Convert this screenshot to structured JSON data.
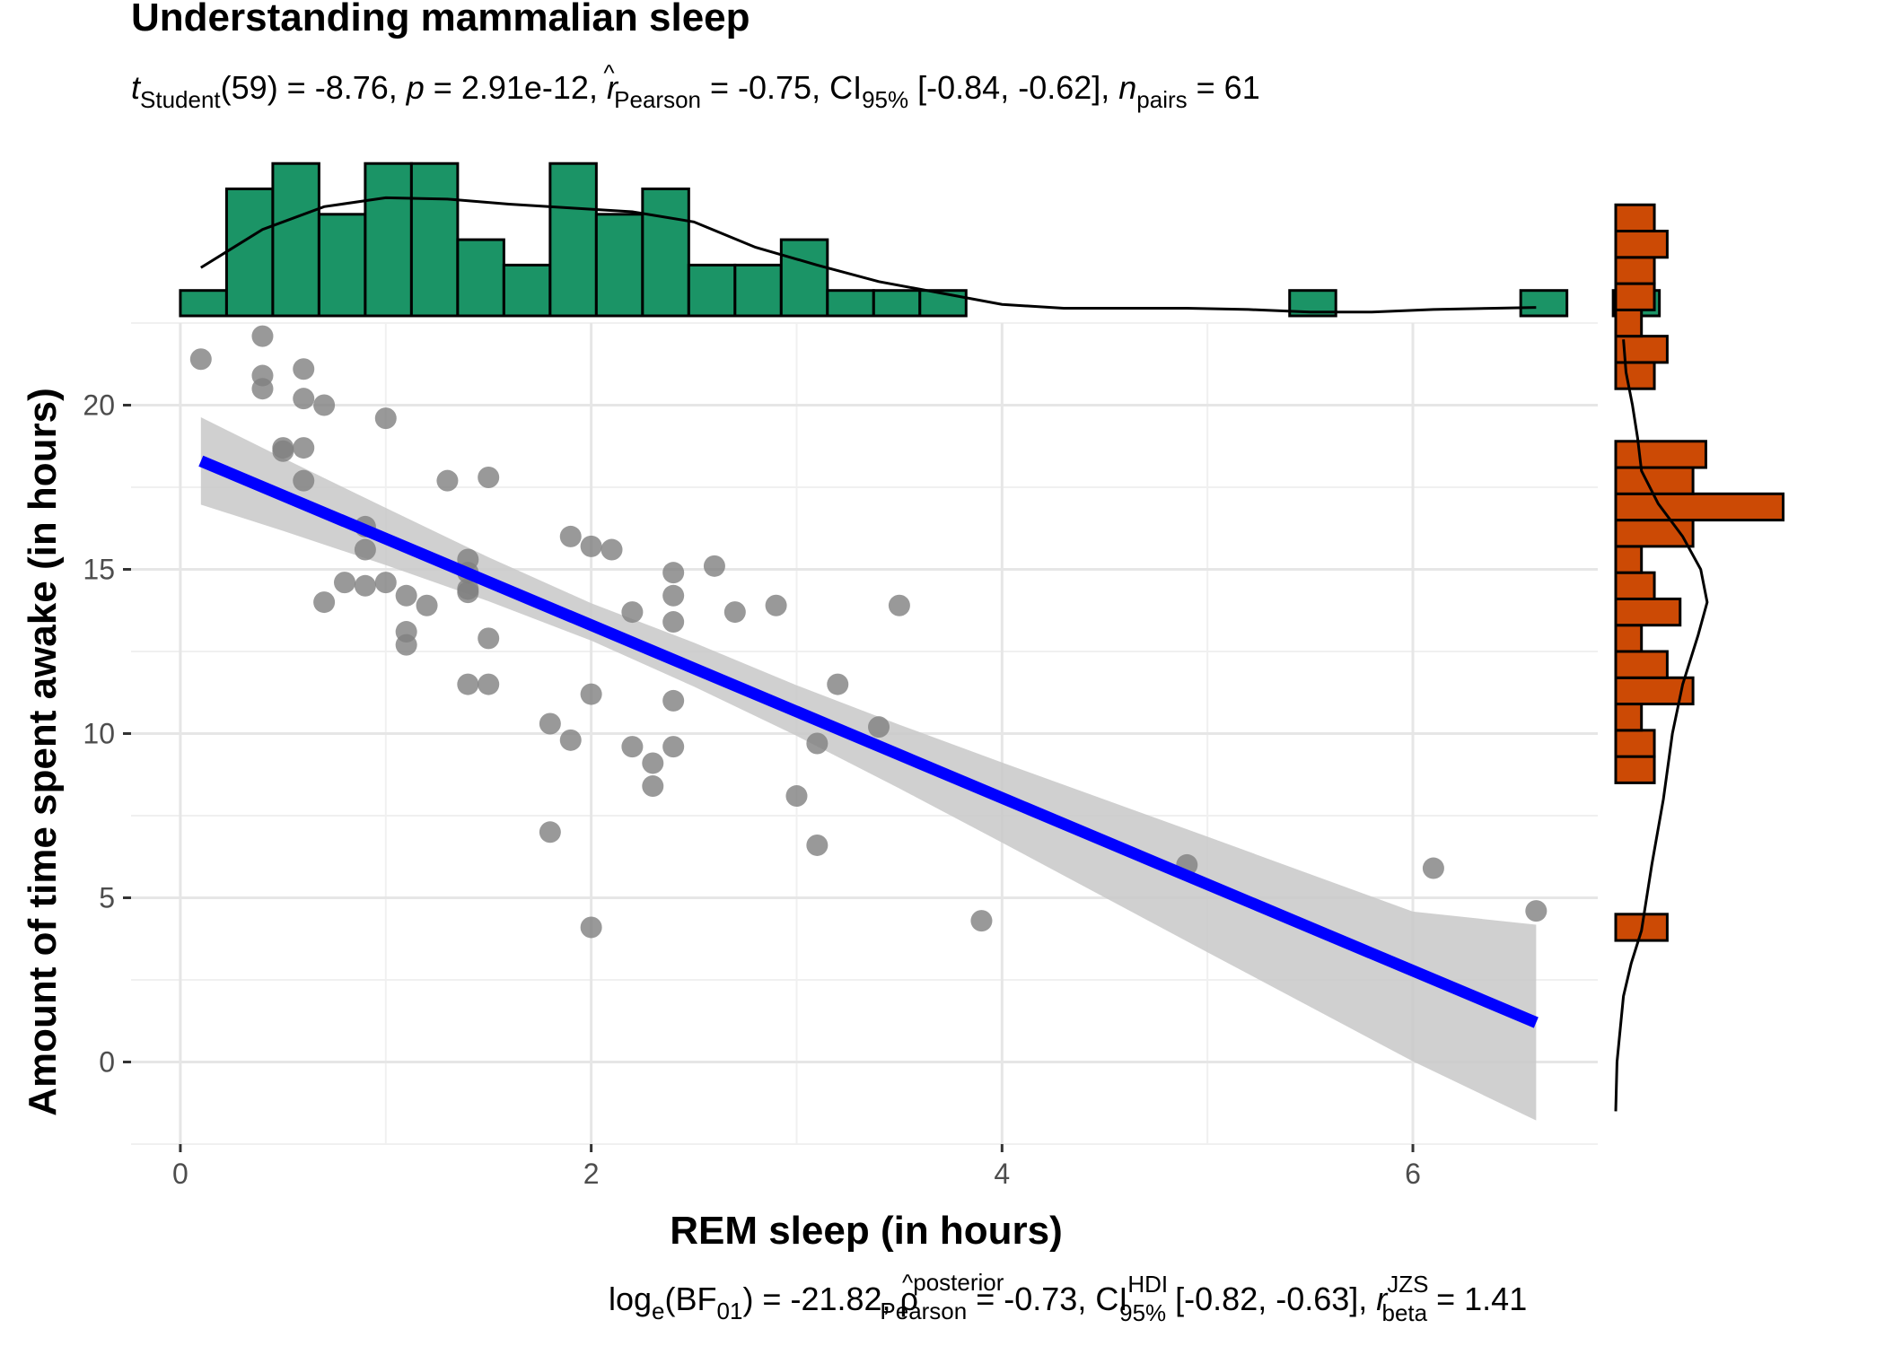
{
  "chart_data": {
    "type": "scatter",
    "title": "Understanding mammalian sleep",
    "subtitle": {
      "t_label": "t",
      "t_sub": "Student",
      "t_val": "(59) = -8.76, ",
      "p_label": "p",
      "p_val": " = 2.91e-12, ",
      "r_label": "r",
      "r_hat": "^",
      "r_sub": "Pearson",
      "r_val": " = -0.75, CI",
      "ci_sub": "95%",
      "ci_val": " [-0.84, -0.62], ",
      "n_label": "n",
      "n_sub": "pairs",
      "n_val": " = 61"
    },
    "caption": {
      "log": "log",
      "log_sub": "e",
      "bf": "(BF",
      "bf_sub": "01",
      "bf_val": ") = -21.82, ",
      "rho": "ρ",
      "rho_hat": "^",
      "rho_sup": "posterior",
      "rho_sub": "Pearson",
      "rho_val": " = -0.73, CI",
      "ci_sup": "HDI",
      "ci_sub": "95%",
      "ci_val": " [-0.82, -0.63], ",
      "r_label": "r",
      "r_sup": "JZS",
      "r_sub": "beta",
      "r_val": " = 1.41"
    },
    "xlabel": "REM sleep (in hours)",
    "ylabel": "Amount of time spent awake (in hours)",
    "xlim": [
      -0.24,
      6.9
    ],
    "ylim": [
      -2.5,
      22.5
    ],
    "xticks": [
      "0",
      "2",
      "4",
      "6"
    ],
    "yticks": [
      "0",
      "5",
      "10",
      "15",
      "20"
    ],
    "points": [
      [
        0.1,
        21.4
      ],
      [
        0.4,
        22.1
      ],
      [
        0.4,
        20.9
      ],
      [
        0.4,
        20.5
      ],
      [
        0.6,
        21.1
      ],
      [
        0.6,
        20.2
      ],
      [
        0.7,
        20.0
      ],
      [
        0.5,
        18.7
      ],
      [
        0.5,
        18.6
      ],
      [
        0.6,
        18.7
      ],
      [
        0.6,
        17.7
      ],
      [
        1.0,
        19.6
      ],
      [
        1.3,
        17.7
      ],
      [
        1.5,
        17.8
      ],
      [
        0.9,
        16.3
      ],
      [
        0.9,
        15.6
      ],
      [
        0.8,
        14.6
      ],
      [
        0.9,
        14.5
      ],
      [
        1.0,
        14.6
      ],
      [
        0.7,
        14.0
      ],
      [
        1.1,
        14.2
      ],
      [
        1.2,
        13.9
      ],
      [
        1.1,
        13.1
      ],
      [
        1.1,
        12.7
      ],
      [
        1.4,
        15.3
      ],
      [
        1.4,
        14.9
      ],
      [
        1.4,
        14.4
      ],
      [
        1.4,
        14.3
      ],
      [
        1.5,
        12.9
      ],
      [
        1.4,
        11.5
      ],
      [
        1.5,
        11.5
      ],
      [
        1.9,
        16.0
      ],
      [
        2.0,
        15.7
      ],
      [
        2.1,
        15.6
      ],
      [
        2.6,
        15.1
      ],
      [
        2.4,
        14.9
      ],
      [
        2.4,
        14.2
      ],
      [
        2.2,
        13.7
      ],
      [
        2.4,
        13.4
      ],
      [
        2.7,
        13.7
      ],
      [
        2.9,
        13.9
      ],
      [
        3.5,
        13.9
      ],
      [
        2.0,
        11.2
      ],
      [
        2.4,
        11.0
      ],
      [
        3.2,
        11.5
      ],
      [
        1.8,
        10.3
      ],
      [
        1.9,
        9.8
      ],
      [
        2.2,
        9.6
      ],
      [
        2.3,
        9.1
      ],
      [
        2.4,
        9.6
      ],
      [
        2.3,
        8.4
      ],
      [
        3.1,
        9.7
      ],
      [
        3.4,
        10.2
      ],
      [
        3.0,
        8.1
      ],
      [
        1.8,
        7.0
      ],
      [
        3.1,
        6.6
      ],
      [
        4.9,
        6.0
      ],
      [
        6.1,
        5.9
      ],
      [
        2.0,
        4.1
      ],
      [
        3.9,
        4.3
      ],
      [
        6.6,
        4.6
      ]
    ],
    "regression": {
      "x": [
        0.1,
        6.6
      ],
      "y": [
        18.3,
        1.2
      ]
    },
    "band": [
      [
        0.1,
        16.97,
        19.63
      ],
      [
        0.5,
        16.17,
        18.39
      ],
      [
        1.0,
        15.13,
        16.87
      ],
      [
        1.5,
        14.03,
        15.37
      ],
      [
        2.0,
        12.83,
        13.97
      ],
      [
        2.5,
        11.43,
        12.77
      ],
      [
        3.0,
        9.93,
        11.47
      ],
      [
        3.5,
        8.33,
        10.27
      ],
      [
        4.0,
        6.68,
        9.12
      ],
      [
        5.0,
        3.34,
        6.86
      ],
      [
        6.0,
        0.02,
        4.58
      ],
      [
        6.6,
        -1.78,
        4.18
      ]
    ],
    "top_hist": {
      "bin_width": 0.225,
      "start": 0.0,
      "counts": [
        1,
        5,
        6,
        4,
        6,
        6,
        3,
        2,
        6,
        4,
        5,
        2,
        2,
        3,
        1,
        1,
        1,
        0,
        0,
        0,
        0,
        0,
        0,
        0,
        1,
        0,
        0,
        0,
        0,
        1,
        0,
        1
      ]
    },
    "top_density": [
      [
        0.1,
        1.9
      ],
      [
        0.4,
        3.4
      ],
      [
        0.7,
        4.3
      ],
      [
        1.0,
        4.65
      ],
      [
        1.3,
        4.6
      ],
      [
        1.6,
        4.4
      ],
      [
        1.9,
        4.25
      ],
      [
        2.2,
        4.1
      ],
      [
        2.5,
        3.7
      ],
      [
        2.8,
        2.7
      ],
      [
        3.1,
        2.0
      ],
      [
        3.4,
        1.35
      ],
      [
        3.7,
        0.9
      ],
      [
        4.0,
        0.45
      ],
      [
        4.3,
        0.3
      ],
      [
        4.6,
        0.3
      ],
      [
        4.9,
        0.3
      ],
      [
        5.2,
        0.25
      ],
      [
        5.5,
        0.15
      ],
      [
        5.8,
        0.15
      ],
      [
        6.1,
        0.25
      ],
      [
        6.4,
        0.3
      ],
      [
        6.6,
        0.33
      ]
    ],
    "right_hist": {
      "bin_width": 0.8,
      "start": 3.7,
      "counts": [
        2,
        0,
        0,
        0,
        0,
        0,
        1.5,
        1.5,
        1,
        3,
        2,
        1,
        2.5,
        1.5,
        1,
        3,
        6.5,
        3,
        3.5,
        0,
        0,
        1.5,
        2,
        1,
        1.5,
        1.5,
        2,
        1.5
      ]
    },
    "right_density": [
      [
        -1.5,
        0.0
      ],
      [
        0.0,
        0.05
      ],
      [
        2.0,
        0.3
      ],
      [
        3.0,
        0.6
      ],
      [
        4.0,
        1.0
      ],
      [
        6.0,
        1.4
      ],
      [
        8.0,
        1.85
      ],
      [
        10.0,
        2.2
      ],
      [
        11.5,
        2.6
      ],
      [
        13.0,
        3.2
      ],
      [
        14.0,
        3.55
      ],
      [
        15.0,
        3.3
      ],
      [
        16.0,
        2.6
      ],
      [
        17.0,
        1.65
      ],
      [
        18.0,
        1.0
      ],
      [
        19.0,
        0.85
      ],
      [
        20.0,
        0.65
      ],
      [
        21.0,
        0.4
      ],
      [
        22.0,
        0.3
      ]
    ],
    "colors": {
      "points": "#7f7f7f",
      "regression": "#0000ff",
      "band": "#c8c8c8",
      "top_hist": "#1b9466",
      "right_hist": "#cc4a05",
      "outline": "#000000"
    }
  }
}
